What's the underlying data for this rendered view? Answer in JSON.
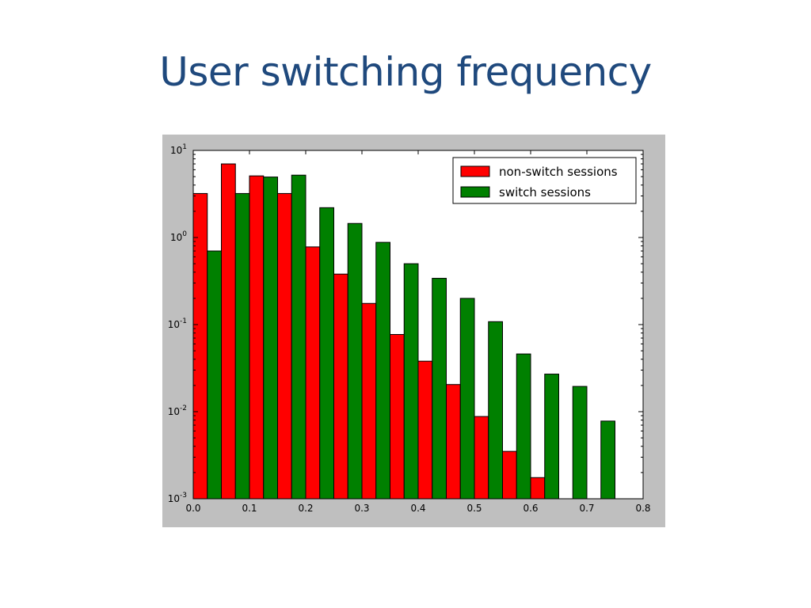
{
  "slide": {
    "title": "User switching frequency"
  },
  "chart_data": {
    "type": "bar",
    "title": "",
    "xlabel": "",
    "ylabel": "",
    "y_scale": "log",
    "xlim": [
      0.0,
      0.8
    ],
    "ylim": [
      0.001,
      10
    ],
    "grid": false,
    "legend_position": "top-right",
    "x_ticks": [
      "0.0",
      "0.1",
      "0.2",
      "0.3",
      "0.4",
      "0.5",
      "0.6",
      "0.7",
      "0.8"
    ],
    "y_ticks": [
      {
        "base": "10",
        "exp": "1"
      },
      {
        "base": "10",
        "exp": "0"
      },
      {
        "base": "10",
        "exp": "-1"
      },
      {
        "base": "10",
        "exp": "-2"
      },
      {
        "base": "10",
        "exp": "-3"
      }
    ],
    "categories": [
      0.025,
      0.075,
      0.125,
      0.175,
      0.225,
      0.275,
      0.325,
      0.375,
      0.425,
      0.475,
      0.525,
      0.575,
      0.625,
      0.675,
      0.725
    ],
    "series": [
      {
        "name": "non-switch sessions",
        "color": "#ff0000",
        "values": [
          3.2,
          7.0,
          5.1,
          3.2,
          0.78,
          0.38,
          0.175,
          0.077,
          0.038,
          0.0205,
          0.0088,
          0.0035,
          0.00175,
          null,
          null
        ]
      },
      {
        "name": "switch sessions",
        "color": "#008000",
        "values": [
          0.7,
          3.2,
          4.95,
          5.2,
          2.2,
          1.45,
          0.88,
          0.5,
          0.34,
          0.2,
          0.108,
          0.046,
          0.027,
          0.0195,
          0.0078
        ]
      }
    ]
  }
}
